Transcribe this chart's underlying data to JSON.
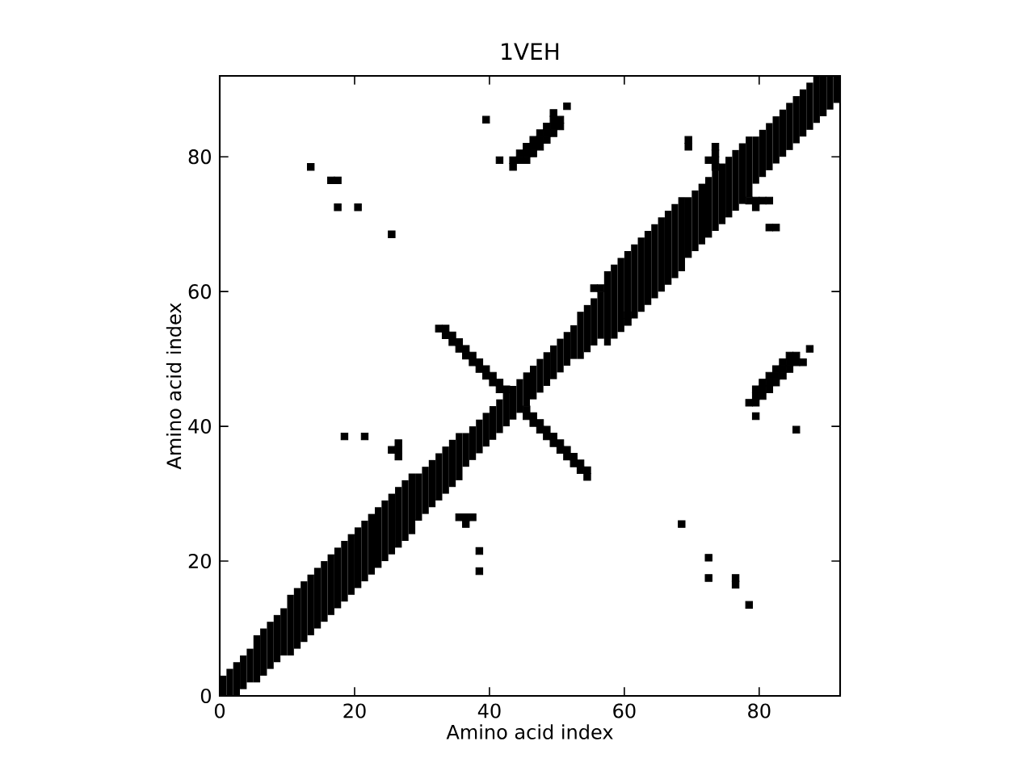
{
  "chart_data": {
    "type": "bar",
    "title": "1VEH",
    "xlabel": "Amino acid index",
    "ylabel": "Amino acid index",
    "xlim": [
      0,
      92
    ],
    "ylim": [
      0,
      92
    ],
    "xticks": [
      0,
      20,
      40,
      60,
      80
    ],
    "yticks": [
      0,
      20,
      40,
      60,
      80
    ],
    "series": [
      {
        "color": "#000000",
        "x": [
          0.5,
          1.5,
          2.5,
          3.5,
          4.5,
          5.5,
          6.5,
          7.5,
          8.5,
          9.5,
          10.5,
          11.5,
          12.5,
          13.5,
          14.5,
          15.5,
          16.5,
          17.5,
          18.5,
          19.5,
          20.5,
          21.5,
          22.5,
          23.5,
          24.5,
          25.5,
          26.5,
          27.5,
          28.5,
          29.5,
          30.5,
          31.5,
          32.5,
          33.5,
          34.5,
          35.5,
          36.5,
          37.5,
          38.5,
          39.5,
          40.5,
          41.5,
          42.5,
          43.5,
          44.5,
          45.5,
          46.5,
          47.5,
          48.5,
          49.5,
          50.5,
          51.5,
          52.5,
          53.5,
          54.5,
          55.5,
          56.5,
          57.5,
          58.5,
          59.5,
          60.5,
          61.5,
          62.5,
          63.5,
          64.5,
          65.5,
          66.5,
          67.5,
          68.5,
          69.5,
          70.5,
          71.5,
          72.5,
          73.5,
          74.5,
          75.5,
          76.5,
          77.5,
          78.5,
          79.5,
          80.5,
          81.5,
          82.5,
          83.5,
          84.5,
          85.5,
          86.5,
          87.5,
          88.5,
          89.5,
          90.5,
          91.5
        ],
        "base": [
          0,
          0,
          0,
          1,
          2,
          2,
          3,
          4,
          5,
          6,
          6,
          7,
          8,
          9,
          10,
          11,
          12,
          13,
          14,
          15,
          16,
          17,
          18,
          19,
          20,
          21,
          22,
          23,
          24,
          26,
          27,
          28,
          29,
          30,
          31,
          32,
          34,
          35,
          36,
          37,
          38,
          39,
          40,
          41,
          42,
          43,
          44,
          45,
          46,
          47,
          48,
          49,
          50,
          50,
          51,
          52,
          53,
          52,
          53,
          54,
          55,
          56,
          57,
          58,
          59,
          60,
          61,
          62,
          63,
          65,
          66,
          67,
          68,
          69,
          70,
          71,
          72,
          73,
          74,
          76,
          77,
          78,
          79,
          80,
          81,
          82,
          83,
          84,
          85,
          86,
          87,
          88
        ],
        "values": [
          3,
          4,
          5,
          5,
          5,
          7,
          7,
          7,
          7,
          7,
          9,
          9,
          9,
          9,
          9,
          9,
          9,
          9,
          9,
          9,
          9,
          9,
          9,
          9,
          9,
          9,
          9,
          9,
          9,
          7,
          7,
          7,
          7,
          7,
          7,
          7,
          5,
          5,
          5,
          5,
          5,
          5,
          5,
          5,
          5,
          5,
          5,
          5,
          5,
          5,
          5,
          5,
          5,
          7,
          7,
          7,
          7,
          11,
          11,
          11,
          11,
          11,
          11,
          11,
          11,
          11,
          11,
          11,
          11,
          9,
          9,
          9,
          9,
          9,
          9,
          9,
          9,
          9,
          9,
          7,
          7,
          7,
          7,
          7,
          7,
          7,
          7,
          7,
          7,
          6,
          5,
          4
        ]
      },
      {
        "type": "scatter",
        "color": "#000000",
        "marker": "square",
        "x": [
          13.5,
          16.5,
          17.5,
          17.5,
          20.5,
          25.5,
          39.5,
          41.5,
          43.5,
          43.5,
          44.5,
          44.5,
          45.5,
          45.5,
          45.5,
          46.5,
          46.5,
          46.5,
          47.5,
          47.5,
          47.5,
          48.5,
          48.5,
          48.5,
          49.5,
          49.5,
          49.5,
          49.5,
          50.5,
          50.5,
          51.5,
          18.5,
          21.5,
          25.5,
          26.5,
          26.5,
          26.5,
          55.5,
          56.5,
          69.5,
          69.5,
          72.5,
          73.5,
          73.5,
          73.5,
          73.5,
          32.5,
          33.5,
          33.5,
          34.5,
          34.5,
          35.5,
          35.5,
          36.5,
          36.5,
          37.5,
          37.5,
          38.5,
          38.5,
          39.5,
          39.5,
          40.5,
          40.5,
          41.5,
          41.5,
          42.5,
          78.5,
          76.5,
          76.5,
          72.5,
          72.5,
          68.5,
          85.5,
          79.5,
          78.5,
          79.5,
          79.5,
          80.5,
          79.5,
          80.5,
          81.5,
          80.5,
          81.5,
          82.5,
          81.5,
          82.5,
          83.5,
          82.5,
          83.5,
          84.5,
          83.5,
          84.5,
          85.5,
          86.5,
          84.5,
          85.5,
          87.5,
          38.5,
          38.5,
          36.5,
          35.5,
          36.5,
          37.5,
          60.5,
          60.5,
          81.5,
          82.5,
          79.5,
          78.5,
          79.5,
          80.5,
          81.5,
          54.5,
          54.5,
          53.5,
          53.5,
          52.5,
          52.5,
          51.5,
          51.5,
          50.5,
          50.5,
          49.5,
          49.5,
          48.5,
          48.5,
          47.5,
          47.5,
          46.5,
          46.5,
          45.5,
          45.5
        ],
        "values": [
          78.5,
          76.5,
          76.5,
          72.5,
          72.5,
          68.5,
          85.5,
          79.5,
          78.5,
          79.5,
          79.5,
          80.5,
          79.5,
          80.5,
          81.5,
          80.5,
          81.5,
          82.5,
          81.5,
          82.5,
          83.5,
          82.5,
          83.5,
          84.5,
          83.5,
          84.5,
          85.5,
          86.5,
          84.5,
          85.5,
          87.5,
          38.5,
          38.5,
          36.5,
          35.5,
          36.5,
          37.5,
          60.5,
          60.5,
          81.5,
          82.5,
          79.5,
          78.5,
          79.5,
          80.5,
          81.5,
          54.5,
          54.5,
          53.5,
          53.5,
          52.5,
          52.5,
          51.5,
          51.5,
          50.5,
          50.5,
          49.5,
          49.5,
          48.5,
          48.5,
          47.5,
          47.5,
          46.5,
          46.5,
          45.5,
          45.5,
          13.5,
          16.5,
          17.5,
          17.5,
          20.5,
          25.5,
          39.5,
          41.5,
          43.5,
          43.5,
          44.5,
          44.5,
          45.5,
          45.5,
          45.5,
          46.5,
          46.5,
          46.5,
          47.5,
          47.5,
          47.5,
          48.5,
          48.5,
          48.5,
          49.5,
          49.5,
          49.5,
          49.5,
          50.5,
          50.5,
          51.5,
          18.5,
          21.5,
          25.5,
          26.5,
          26.5,
          26.5,
          55.5,
          56.5,
          69.5,
          69.5,
          72.5,
          73.5,
          73.5,
          73.5,
          73.5,
          32.5,
          33.5,
          33.5,
          34.5,
          34.5,
          35.5,
          35.5,
          36.5,
          36.5,
          37.5,
          37.5,
          38.5,
          38.5,
          39.5,
          39.5,
          40.5,
          40.5,
          41.5,
          41.5,
          42.5
        ]
      }
    ]
  }
}
